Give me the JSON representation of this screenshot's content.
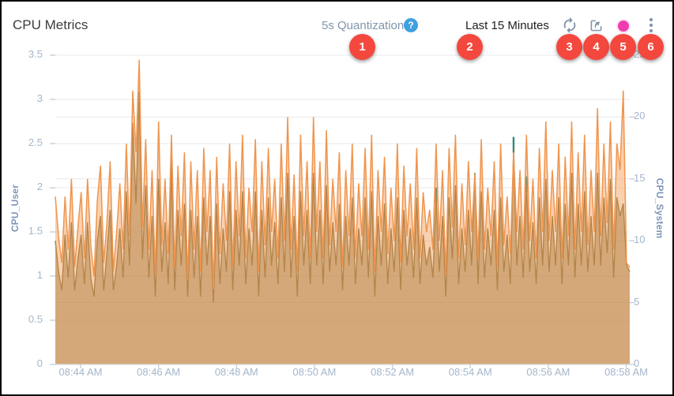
{
  "header": {
    "title": "CPU Metrics",
    "quantization_label": "5s Quantization",
    "help_icon_glyph": "?",
    "time_range": "Last 15 Minutes",
    "icons": [
      "help-icon",
      "refresh-icon",
      "export-icon",
      "record-dot-icon",
      "kebab-menu-icon"
    ]
  },
  "callout_badges": [
    "1",
    "2",
    "3",
    "4",
    "5",
    "6"
  ],
  "colors": {
    "badge_red": "#f4483e",
    "help_blue": "#3ea1df",
    "record_pink": "#f03cae",
    "icon_slate": "#8294a8",
    "axis_text": "#a4b6cb",
    "axis_title_text": "#7c96b8",
    "cpu_user_stroke": "#f0954e",
    "cpu_user_fill": "rgba(243,153,78,0.45)",
    "cpu_system_stroke": "#80764a",
    "cpu_system_fill": "rgba(131,119,75,0.55)",
    "teal_spike": "#2a8c78",
    "gridline": "#e6e9ee",
    "axis_line": "#d5dbe2",
    "tick_mark": "#c6cfd9"
  },
  "chart_data": {
    "type": "area",
    "title": "CPU Metrics",
    "quantization": "5s",
    "time_window": "Last 15 Minutes",
    "legend": "none",
    "grid": true,
    "left_axis": {
      "label": "CPU_User",
      "min": 0,
      "max": 3.5,
      "tick_values": [
        3.5,
        3,
        2.5,
        2,
        1.5,
        1,
        0.5,
        0
      ]
    },
    "right_axis": {
      "label": "CPU_System",
      "min": 0,
      "max": 25,
      "tick_values": [
        25,
        20,
        15,
        10,
        5,
        0
      ]
    },
    "x_ticks": [
      "08:44 AM",
      "08:46 AM",
      "08:48 AM",
      "08:50 AM",
      "08:52 AM",
      "08:54 AM",
      "08:56 AM",
      "08:58 AM"
    ],
    "series": [
      {
        "name": "CPU_User",
        "axis": "left",
        "values": [
          1.9,
          1.45,
          1.15,
          1.9,
          1.3,
          2.1,
          1.1,
          1.55,
          1.95,
          1.2,
          2.1,
          1.35,
          1.0,
          1.85,
          2.25,
          1.15,
          1.6,
          2.3,
          1.05,
          1.5,
          2.05,
          1.3,
          2.5,
          1.45,
          3.1,
          2.4,
          3.45,
          1.55,
          2.55,
          1.3,
          2.2,
          1.0,
          2.75,
          1.35,
          2.1,
          1.25,
          2.6,
          1.1,
          2.25,
          1.45,
          2.4,
          0.95,
          2.3,
          1.3,
          2.2,
          1.05,
          2.45,
          1.5,
          2.2,
          0.85,
          2.35,
          1.25,
          2.05,
          1.4,
          2.5,
          1.1,
          2.3,
          1.45,
          2.6,
          1.2,
          2.0,
          1.5,
          2.55,
          1.05,
          2.3,
          1.35,
          2.45,
          1.5,
          2.1,
          1.2,
          2.5,
          1.4,
          2.8,
          1.3,
          2.15,
          1.05,
          2.6,
          1.45,
          2.3,
          1.2,
          2.8,
          1.5,
          2.3,
          1.2,
          2.65,
          1.35,
          2.1,
          1.5,
          2.4,
          1.1,
          2.2,
          1.45,
          2.5,
          1.2,
          2.05,
          1.45,
          2.45,
          1.3,
          2.6,
          1.05,
          2.2,
          1.5,
          2.35,
          1.25,
          2.0,
          1.4,
          2.5,
          1.15,
          2.25,
          1.45,
          2.05,
          1.3,
          2.45,
          1.2,
          1.95,
          1.5,
          1.75,
          1.3,
          2.5,
          1.4,
          2.2,
          1.0,
          2.45,
          1.55,
          2.6,
          1.2,
          2.05,
          1.35,
          2.3,
          1.5,
          2.15,
          1.2,
          2.55,
          1.3,
          2.0,
          1.45,
          2.3,
          1.1,
          2.5,
          1.35,
          1.9,
          1.25,
          2.4,
          1.5,
          2.2,
          1.3,
          2.6,
          1.4,
          2.1,
          1.2,
          2.45,
          1.5,
          2.75,
          1.4,
          2.2,
          1.5,
          2.5,
          1.2,
          2.35,
          1.45,
          2.75,
          1.3,
          2.4,
          1.5,
          2.6,
          1.35,
          2.2,
          1.5,
          2.9,
          1.45,
          2.5,
          1.6,
          2.75,
          1.3,
          2.5,
          2.2,
          3.1,
          1.15,
          1.1
        ]
      },
      {
        "name": "CPU_System",
        "axis": "right",
        "values": [
          10,
          7.5,
          6,
          10.5,
          7,
          11.5,
          6,
          8.5,
          10.5,
          6.5,
          11.5,
          7,
          5.5,
          10,
          12,
          6,
          9,
          12.5,
          6,
          8,
          11,
          7,
          14,
          8,
          19.5,
          13,
          22,
          8.5,
          14.5,
          7,
          12,
          5.5,
          15,
          7.5,
          11.5,
          6.5,
          15.8,
          6,
          12.5,
          8,
          13,
          5.5,
          12.5,
          7,
          12,
          5.5,
          13.5,
          8,
          12,
          5,
          13,
          6.5,
          11,
          7.5,
          14,
          6,
          12.5,
          8,
          14,
          6.5,
          11,
          8,
          14,
          5.5,
          12.5,
          7,
          13.5,
          8,
          11.5,
          6.5,
          13.5,
          7.5,
          15.5,
          7,
          12,
          5.5,
          14,
          8,
          12.5,
          6.5,
          15.5,
          8,
          12.5,
          6.5,
          14.5,
          7.5,
          11.5,
          8,
          13,
          6,
          12,
          8,
          13.5,
          6.5,
          11,
          8,
          13.5,
          7,
          14,
          5.5,
          12,
          8,
          13,
          6.5,
          11,
          7.5,
          13.5,
          6,
          12.5,
          8,
          11,
          7,
          13.5,
          6.5,
          10.5,
          8,
          9.5,
          7,
          13.5,
          7.5,
          12,
          5.5,
          13.5,
          8.5,
          14.5,
          6.5,
          11,
          7.5,
          12.5,
          8,
          15.5,
          6.5,
          14,
          7,
          11,
          8,
          12.5,
          6,
          13.5,
          7.5,
          10.5,
          6.5,
          17.5,
          8,
          12,
          7,
          14.5,
          7.5,
          11.5,
          6.5,
          13.5,
          8,
          15,
          7.5,
          12,
          8,
          13.5,
          6.5,
          13,
          8,
          15.5,
          7,
          13,
          8,
          14,
          7.5,
          12,
          8,
          15.5,
          8,
          13.5,
          9,
          15,
          7,
          13.5,
          12,
          13,
          8,
          7.5
        ]
      }
    ],
    "teal_spike_tips": [
      {
        "index": 36,
        "right_value": 16.6
      },
      {
        "index": 118,
        "right_value": 14.3
      },
      {
        "index": 142,
        "right_value": 18.4
      },
      {
        "index": 146,
        "right_value": 15.2
      }
    ]
  }
}
